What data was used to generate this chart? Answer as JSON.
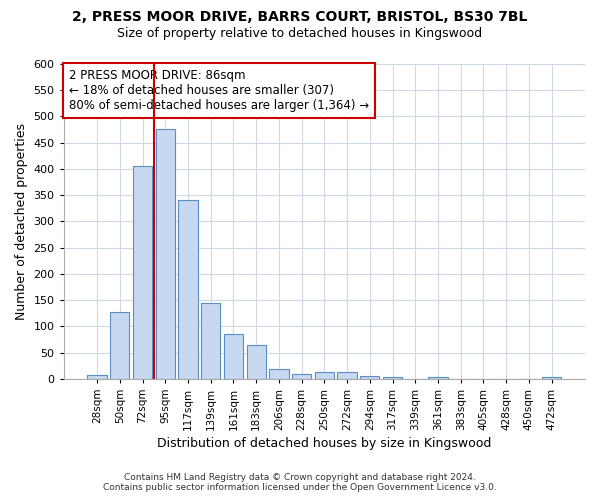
{
  "title_line1": "2, PRESS MOOR DRIVE, BARRS COURT, BRISTOL, BS30 7BL",
  "title_line2": "Size of property relative to detached houses in Kingswood",
  "xlabel": "Distribution of detached houses by size in Kingswood",
  "ylabel": "Number of detached properties",
  "bar_labels": [
    "28sqm",
    "50sqm",
    "72sqm",
    "95sqm",
    "117sqm",
    "139sqm",
    "161sqm",
    "183sqm",
    "206sqm",
    "228sqm",
    "250sqm",
    "272sqm",
    "294sqm",
    "317sqm",
    "339sqm",
    "361sqm",
    "383sqm",
    "405sqm",
    "428sqm",
    "450sqm",
    "472sqm"
  ],
  "bar_values": [
    8,
    127,
    405,
    477,
    340,
    145,
    85,
    65,
    18,
    10,
    13,
    13,
    6,
    3,
    0,
    4,
    0,
    0,
    0,
    0,
    4
  ],
  "bar_color": "#c6d9f0",
  "bar_edge_color": "#5b8ec4",
  "vline_x": 2.5,
  "vline_color": "#cc0000",
  "annotation_line1": "2 PRESS MOOR DRIVE: 86sqm",
  "annotation_line2": "← 18% of detached houses are smaller (307)",
  "annotation_line3": "80% of semi-detached houses are larger (1,364) →",
  "annotation_box_color": "white",
  "annotation_box_edge": "#cc0000",
  "ylim": [
    0,
    600
  ],
  "yticks": [
    0,
    50,
    100,
    150,
    200,
    250,
    300,
    350,
    400,
    450,
    500,
    550,
    600
  ],
  "footer_line1": "Contains HM Land Registry data © Crown copyright and database right 2024.",
  "footer_line2": "Contains public sector information licensed under the Open Government Licence v3.0.",
  "bg_color": "#ffffff",
  "plot_bg_color": "#ffffff",
  "grid_color": "#d0d8e8"
}
